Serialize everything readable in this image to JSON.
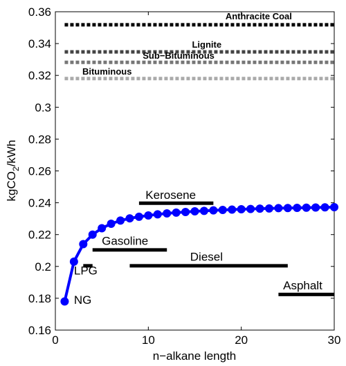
{
  "chart_data": {
    "type": "line",
    "xlabel": "n−alkane length",
    "ylabel_parts": {
      "main": "kgCO",
      "sub": "2",
      "tail": "/kWh"
    },
    "xlim": [
      0,
      30
    ],
    "ylim": [
      0.16,
      0.36
    ],
    "xticks": [
      0,
      10,
      20,
      30
    ],
    "yticks": [
      0.16,
      0.18,
      0.2,
      0.22,
      0.24,
      0.26,
      0.28,
      0.3,
      0.32,
      0.34,
      0.36
    ],
    "xtick_labels": [
      "0",
      "10",
      "20",
      "30"
    ],
    "ytick_labels": [
      "0.16",
      "0.18",
      "0.2",
      "0.22",
      "0.24",
      "0.26",
      "0.28",
      "0.3",
      "0.32",
      "0.34",
      "0.36"
    ],
    "grid": false,
    "series": [
      {
        "color": "#0000ff",
        "x": [
          1,
          2,
          3,
          4,
          5,
          6,
          7,
          8,
          9,
          10,
          11,
          12,
          13,
          14,
          15,
          16,
          17,
          18,
          19,
          20,
          21,
          22,
          23,
          24,
          25,
          26,
          27,
          28,
          29,
          30
        ],
        "y": [
          0.178,
          0.203,
          0.214,
          0.22,
          0.224,
          0.2268,
          0.2288,
          0.2302,
          0.2312,
          0.232,
          0.2327,
          0.2333,
          0.2338,
          0.2342,
          0.2346,
          0.2349,
          0.2352,
          0.2355,
          0.2357,
          0.2359,
          0.2361,
          0.2363,
          0.2364,
          0.2366,
          0.2367,
          0.2368,
          0.2369,
          0.237,
          0.2371,
          0.2372
        ]
      }
    ],
    "fuel_ranges": [
      {
        "label": "LPG",
        "x": [
          3,
          4
        ],
        "y": 0.2004,
        "label_pos": [
          2,
          0.195
        ]
      },
      {
        "label": "Gasoline",
        "x": [
          4,
          12
        ],
        "y": 0.2104,
        "label_pos": [
          5,
          0.2135
        ]
      },
      {
        "label": "Kerosene",
        "x": [
          9,
          17
        ],
        "y": 0.2397,
        "label_pos": [
          9.7,
          0.2425
        ]
      },
      {
        "label": "Diesel",
        "x": [
          8,
          25
        ],
        "y": 0.2004,
        "label_pos": [
          14.5,
          0.2035
        ]
      },
      {
        "label": "Asphalt",
        "x": [
          24,
          30
        ],
        "y": 0.1824,
        "label_pos": [
          24.5,
          0.1855
        ]
      }
    ],
    "point_annotations": [
      {
        "label": "NG",
        "pos": [
          2,
          0.1765
        ]
      }
    ],
    "coal_lines": [
      {
        "label": "Anthracite Coal",
        "y": 0.3518,
        "color": "#000000",
        "label_pos": [
          18.3,
          0.3553
        ]
      },
      {
        "label": "Lignite",
        "y": 0.3348,
        "color": "#444444",
        "label_pos": [
          14.7,
          0.3374
        ]
      },
      {
        "label": "Sub−Bituminous",
        "y": 0.3282,
        "color": "#777777",
        "label_pos": [
          9.4,
          0.3304
        ]
      },
      {
        "label": "Bituminous",
        "y": 0.318,
        "color": "#aaaaaa",
        "label_pos": [
          2.9,
          0.3206
        ]
      }
    ]
  }
}
